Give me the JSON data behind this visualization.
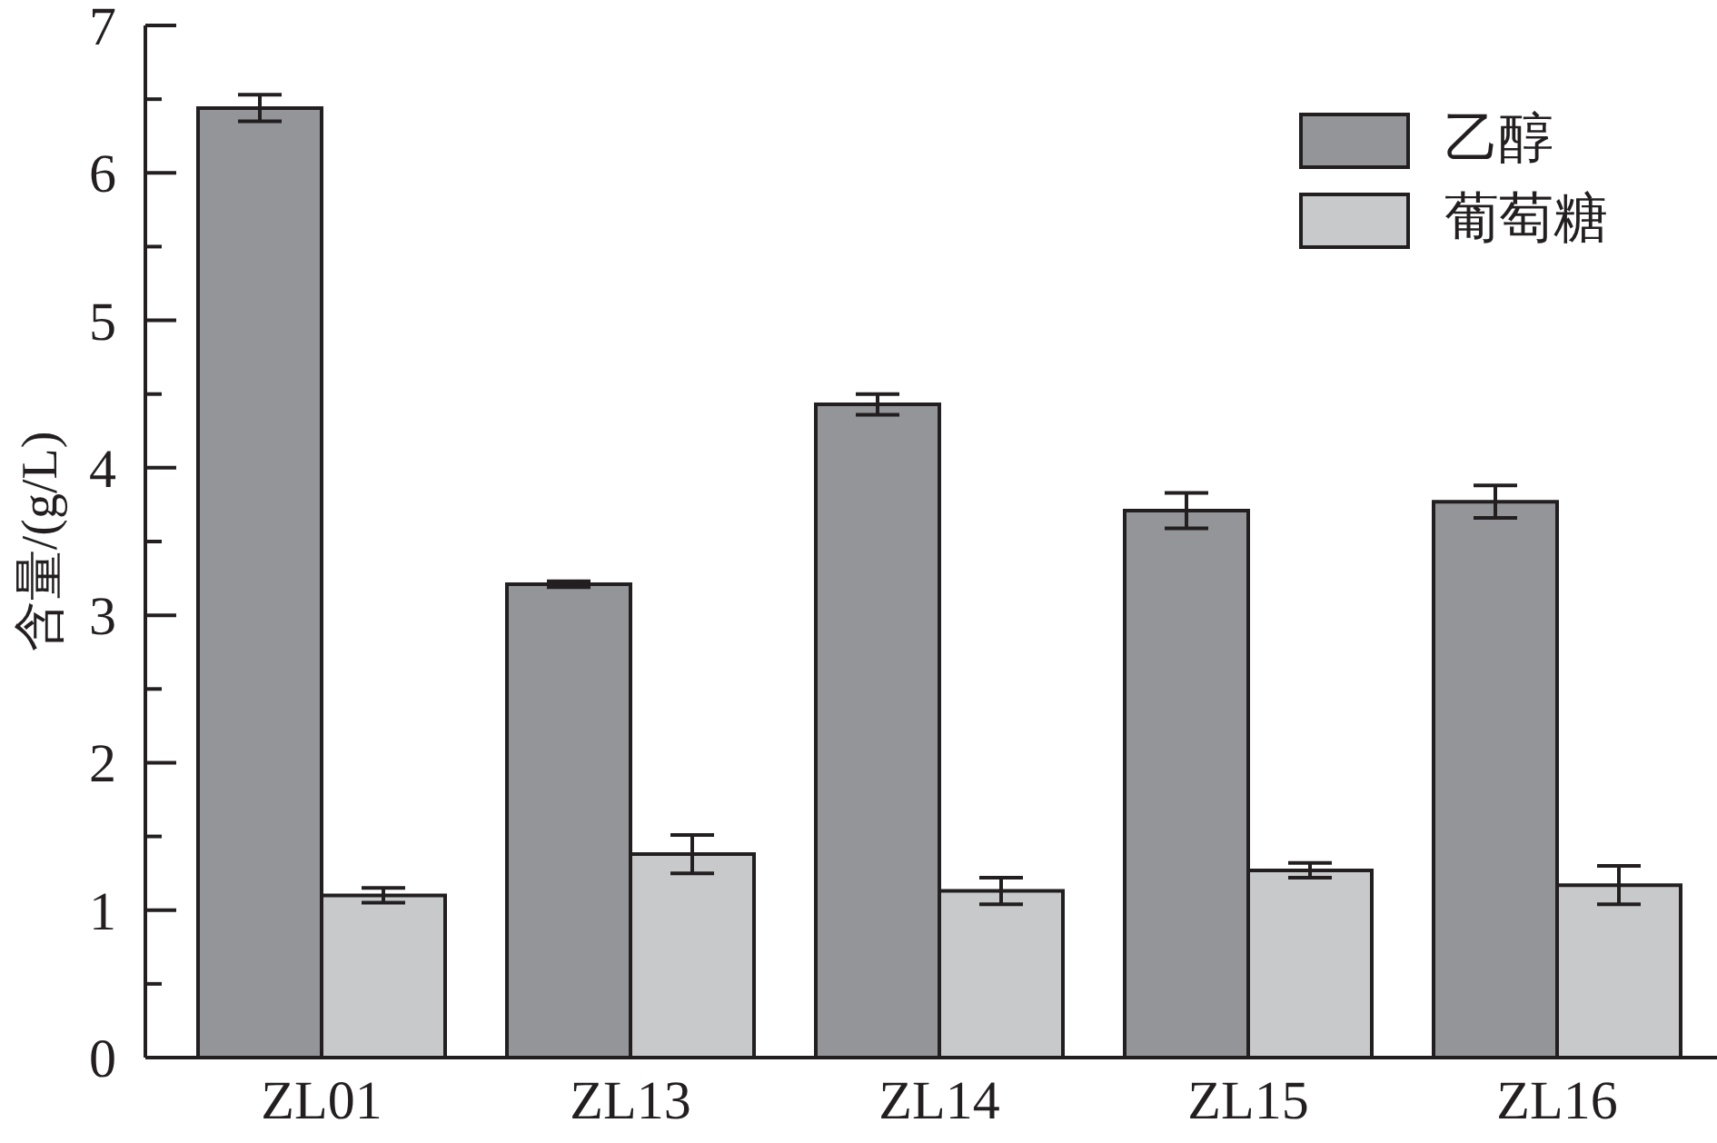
{
  "chart_data": {
    "type": "bar",
    "ylabel": "含量/(g/L)",
    "categories": [
      "ZL01",
      "ZL13",
      "ZL14",
      "ZL15",
      "ZL16"
    ],
    "series": [
      {
        "name": "乙醇",
        "color": "#939598",
        "values": [
          6.44,
          3.21,
          4.43,
          3.71,
          3.77
        ],
        "errors": [
          0.09,
          0.02,
          0.07,
          0.12,
          0.11
        ]
      },
      {
        "name": "葡萄糖",
        "color": "#c8c9cb",
        "values": [
          1.1,
          1.38,
          1.13,
          1.27,
          1.17
        ],
        "errors": [
          0.05,
          0.13,
          0.09,
          0.05,
          0.13
        ]
      }
    ],
    "ylim": [
      0,
      7
    ],
    "yticks": [
      0,
      {
        "value": 0.5,
        "label": null
      },
      1,
      {
        "value": 1.5,
        "label": null
      },
      2,
      {
        "value": 2.5,
        "label": null
      },
      3,
      {
        "value": 3.5,
        "label": null
      },
      4,
      {
        "value": 4.5,
        "label": null
      },
      5,
      {
        "value": 5.5,
        "label": null
      },
      6,
      {
        "value": 6.5,
        "label": null
      },
      7
    ],
    "grid": false,
    "legend": "top right"
  }
}
